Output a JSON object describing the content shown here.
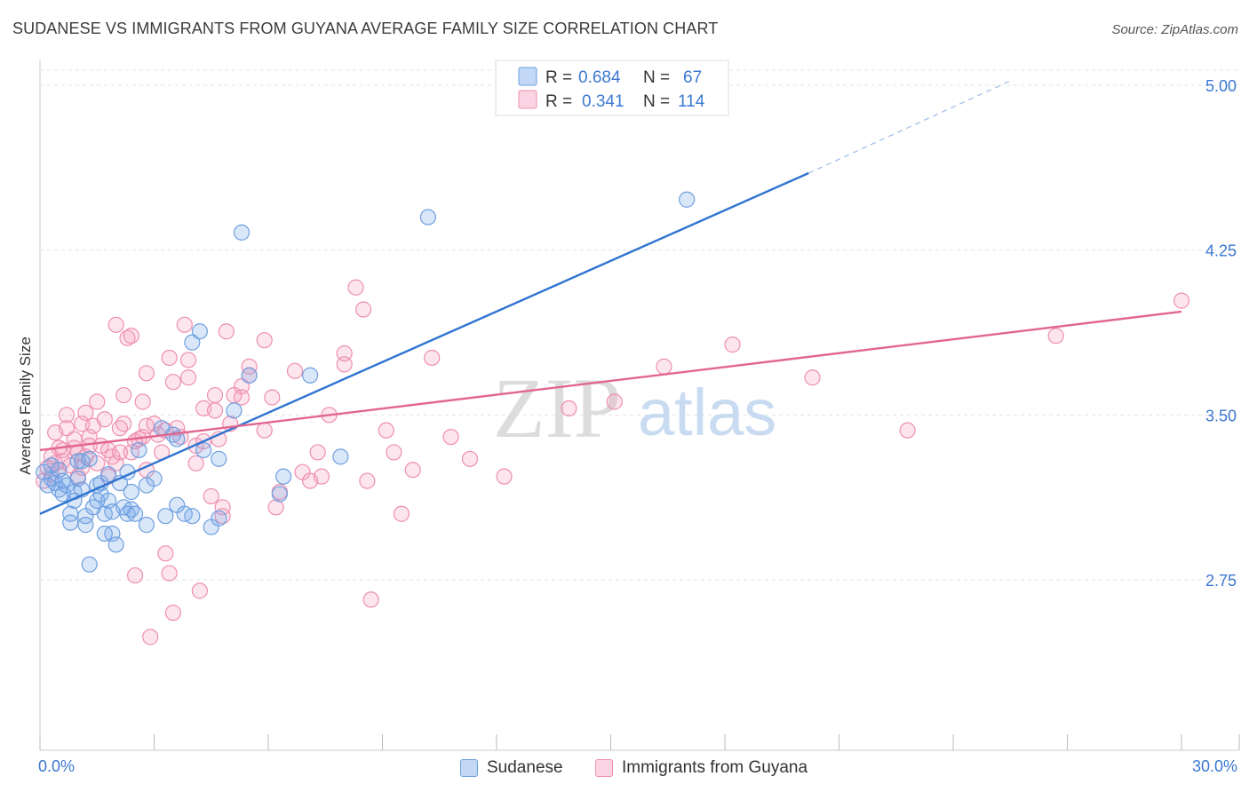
{
  "title": "SUDANESE VS IMMIGRANTS FROM GUYANA AVERAGE FAMILY SIZE CORRELATION CHART",
  "source": "Source: ZipAtlas.com",
  "watermark": {
    "zip": "ZIP",
    "atlas": "atlas"
  },
  "colors": {
    "sudanese_fill": "rgba(120,168,232,0.28)",
    "sudanese_stroke": "#6f9fe0",
    "sudanese_line": "#2f74d0",
    "guyana_fill": "rgba(244,160,190,0.28)",
    "guyana_stroke": "#ee8fb0",
    "guyana_line": "#e2668f",
    "tick_label": "#3b78d1",
    "grid": "#e3e3e3"
  },
  "stats_legend": {
    "rows": [
      {
        "r_label": "R =",
        "r_value": "0.684",
        "n_label": "N =",
        "n_value": "67"
      },
      {
        "r_label": "R =",
        "r_value": "0.341",
        "n_label": "N =",
        "n_value": "114"
      }
    ]
  },
  "bottom_legend": {
    "items": [
      "Sudanese",
      "Immigrants from Guyana"
    ]
  },
  "chart_data": {
    "type": "scatter",
    "title": "SUDANESE VS IMMIGRANTS FROM GUYANA AVERAGE FAMILY SIZE CORRELATION CHART",
    "xlabel": "",
    "ylabel": "Average Family Size",
    "xlim": [
      0,
      30
    ],
    "ylim": [
      2.2,
      5.05
    ],
    "x_tick_labels": [
      "0.0%",
      "30.0%"
    ],
    "x_ticks": [
      0,
      3,
      6,
      9,
      12,
      15,
      18,
      21,
      24,
      27,
      30
    ],
    "y_ticks": [
      2.75,
      3.5,
      4.25,
      5.0
    ],
    "y_tick_labels": [
      "2.75",
      "3.50",
      "4.25",
      "5.00"
    ],
    "grid": true,
    "legend_position": "top-center",
    "series": [
      {
        "name": "Sudanese",
        "trend": {
          "x0": 0,
          "y0": 3.05,
          "x1": 20.2,
          "y1": 4.6,
          "dashed_to_x": 25.5,
          "dashed_to_y": 5.02
        },
        "points": [
          [
            0.1,
            3.24
          ],
          [
            0.2,
            3.18
          ],
          [
            0.3,
            3.27
          ],
          [
            0.3,
            3.21
          ],
          [
            0.4,
            3.19
          ],
          [
            0.5,
            3.16
          ],
          [
            0.5,
            3.25
          ],
          [
            0.6,
            3.14
          ],
          [
            0.6,
            3.2
          ],
          [
            0.7,
            3.18
          ],
          [
            0.8,
            3.01
          ],
          [
            0.8,
            3.05
          ],
          [
            0.9,
            3.11
          ],
          [
            1.0,
            3.21
          ],
          [
            1.0,
            3.29
          ],
          [
            1.1,
            3.16
          ],
          [
            1.1,
            3.29
          ],
          [
            1.2,
            3.04
          ],
          [
            1.2,
            3.0
          ],
          [
            1.3,
            2.82
          ],
          [
            1.4,
            3.08
          ],
          [
            1.5,
            3.11
          ],
          [
            1.6,
            3.19
          ],
          [
            1.6,
            3.14
          ],
          [
            1.7,
            2.96
          ],
          [
            1.7,
            3.05
          ],
          [
            1.8,
            3.11
          ],
          [
            1.8,
            3.23
          ],
          [
            1.9,
            3.06
          ],
          [
            1.9,
            2.96
          ],
          [
            2.0,
            2.91
          ],
          [
            2.1,
            3.19
          ],
          [
            2.2,
            3.08
          ],
          [
            2.3,
            3.05
          ],
          [
            2.3,
            3.24
          ],
          [
            2.4,
            3.15
          ],
          [
            2.4,
            3.07
          ],
          [
            2.5,
            3.05
          ],
          [
            2.6,
            3.34
          ],
          [
            2.8,
            3.0
          ],
          [
            2.8,
            3.18
          ],
          [
            3.0,
            3.21
          ],
          [
            3.2,
            3.44
          ],
          [
            3.3,
            3.04
          ],
          [
            3.5,
            3.41
          ],
          [
            3.6,
            3.09
          ],
          [
            3.6,
            3.39
          ],
          [
            3.8,
            3.05
          ],
          [
            4.0,
            3.04
          ],
          [
            4.0,
            3.83
          ],
          [
            4.2,
            3.88
          ],
          [
            4.3,
            3.34
          ],
          [
            4.5,
            2.99
          ],
          [
            4.7,
            3.03
          ],
          [
            4.7,
            3.3
          ],
          [
            5.1,
            3.52
          ],
          [
            5.3,
            4.33
          ],
          [
            5.5,
            3.68
          ],
          [
            6.3,
            3.14
          ],
          [
            6.4,
            3.22
          ],
          [
            7.1,
            3.68
          ],
          [
            7.9,
            3.31
          ],
          [
            10.2,
            4.4
          ],
          [
            17.0,
            4.48
          ],
          [
            1.3,
            3.3
          ],
          [
            0.9,
            3.15
          ],
          [
            1.5,
            3.18
          ]
        ]
      },
      {
        "name": "Immigrants from Guyana",
        "trend": {
          "x0": 0,
          "y0": 3.34,
          "x1": 30,
          "y1": 3.97
        },
        "points": [
          [
            0.1,
            3.2
          ],
          [
            0.2,
            3.26
          ],
          [
            0.3,
            3.31
          ],
          [
            0.3,
            3.23
          ],
          [
            0.4,
            3.28
          ],
          [
            0.5,
            3.25
          ],
          [
            0.5,
            3.35
          ],
          [
            0.6,
            3.34
          ],
          [
            0.6,
            3.29
          ],
          [
            0.7,
            3.44
          ],
          [
            0.7,
            3.5
          ],
          [
            0.8,
            3.27
          ],
          [
            0.9,
            3.35
          ],
          [
            0.9,
            3.39
          ],
          [
            1.0,
            3.33
          ],
          [
            1.0,
            3.22
          ],
          [
            1.1,
            3.46
          ],
          [
            1.1,
            3.26
          ],
          [
            1.2,
            3.31
          ],
          [
            1.3,
            3.4
          ],
          [
            1.3,
            3.36
          ],
          [
            1.4,
            3.45
          ],
          [
            1.5,
            3.28
          ],
          [
            1.5,
            3.56
          ],
          [
            1.6,
            3.36
          ],
          [
            1.7,
            3.48
          ],
          [
            1.8,
            3.34
          ],
          [
            1.8,
            3.22
          ],
          [
            1.9,
            3.31
          ],
          [
            2.0,
            3.91
          ],
          [
            2.0,
            3.28
          ],
          [
            2.1,
            3.33
          ],
          [
            2.1,
            3.44
          ],
          [
            2.2,
            3.46
          ],
          [
            2.2,
            3.59
          ],
          [
            2.3,
            3.85
          ],
          [
            2.4,
            3.86
          ],
          [
            2.4,
            3.33
          ],
          [
            2.5,
            3.38
          ],
          [
            2.5,
            2.77
          ],
          [
            2.6,
            3.39
          ],
          [
            2.7,
            3.4
          ],
          [
            2.7,
            3.56
          ],
          [
            2.8,
            3.69
          ],
          [
            2.8,
            3.45
          ],
          [
            2.9,
            2.49
          ],
          [
            3.0,
            3.46
          ],
          [
            3.1,
            3.41
          ],
          [
            3.2,
            3.33
          ],
          [
            3.3,
            3.43
          ],
          [
            3.3,
            2.87
          ],
          [
            3.4,
            2.78
          ],
          [
            3.4,
            3.76
          ],
          [
            3.5,
            2.6
          ],
          [
            3.5,
            3.65
          ],
          [
            3.6,
            3.44
          ],
          [
            3.7,
            3.4
          ],
          [
            3.8,
            3.91
          ],
          [
            3.9,
            3.67
          ],
          [
            3.9,
            3.75
          ],
          [
            4.1,
            3.36
          ],
          [
            4.1,
            3.28
          ],
          [
            4.2,
            2.7
          ],
          [
            4.3,
            3.53
          ],
          [
            4.3,
            3.38
          ],
          [
            4.5,
            3.13
          ],
          [
            4.6,
            3.52
          ],
          [
            4.6,
            3.59
          ],
          [
            4.7,
            3.39
          ],
          [
            4.8,
            3.04
          ],
          [
            4.8,
            3.08
          ],
          [
            4.9,
            3.88
          ],
          [
            5.0,
            3.46
          ],
          [
            5.1,
            3.59
          ],
          [
            5.3,
            3.63
          ],
          [
            5.3,
            3.58
          ],
          [
            5.5,
            3.72
          ],
          [
            5.5,
            3.68
          ],
          [
            5.9,
            3.43
          ],
          [
            5.9,
            3.84
          ],
          [
            6.1,
            3.58
          ],
          [
            6.2,
            3.08
          ],
          [
            6.3,
            3.15
          ],
          [
            6.7,
            3.7
          ],
          [
            6.9,
            3.24
          ],
          [
            7.1,
            3.2
          ],
          [
            7.3,
            3.33
          ],
          [
            7.4,
            3.22
          ],
          [
            7.6,
            3.5
          ],
          [
            8.0,
            3.73
          ],
          [
            8.0,
            3.78
          ],
          [
            8.3,
            4.08
          ],
          [
            8.5,
            3.98
          ],
          [
            8.7,
            2.66
          ],
          [
            8.6,
            3.2
          ],
          [
            9.1,
            3.43
          ],
          [
            9.3,
            3.33
          ],
          [
            9.5,
            3.05
          ],
          [
            9.8,
            3.25
          ],
          [
            10.3,
            3.76
          ],
          [
            10.8,
            3.4
          ],
          [
            11.3,
            3.3
          ],
          [
            12.2,
            3.22
          ],
          [
            13.9,
            3.53
          ],
          [
            15.1,
            3.56
          ],
          [
            16.4,
            3.72
          ],
          [
            18.2,
            3.82
          ],
          [
            20.3,
            3.67
          ],
          [
            22.8,
            3.43
          ],
          [
            26.7,
            3.86
          ],
          [
            30.0,
            4.02
          ],
          [
            0.4,
            3.42
          ],
          [
            1.2,
            3.51
          ],
          [
            2.8,
            3.25
          ]
        ]
      }
    ]
  }
}
